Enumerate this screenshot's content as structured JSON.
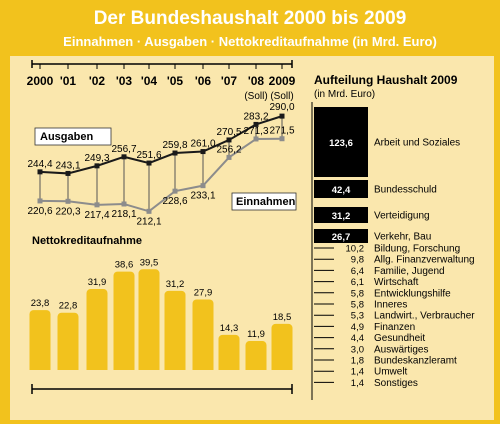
{
  "title": "Der Bundeshaushalt 2000 bis 2009",
  "subtitle": "Einnahmen · Ausgaben · Nettokreditaufnahme (in Mrd. Euro)",
  "chart_data": [
    {
      "type": "line",
      "x": [
        "2000",
        "'01",
        "'02",
        "'03",
        "'04",
        "'05",
        "'06",
        "'07",
        "'08",
        "2009"
      ],
      "x_sublabels": [
        "",
        "",
        "",
        "",
        "",
        "",
        "",
        "",
        "(Soll)",
        "(Soll)"
      ],
      "series": [
        {
          "name": "Ausgaben",
          "color": "#1a1a1a",
          "values": [
            244.4,
            243.1,
            249.3,
            256.7,
            251.6,
            259.8,
            261.0,
            270.5,
            283.2,
            290.0
          ]
        },
        {
          "name": "Einnahmen",
          "color": "#8c8c8c",
          "values": [
            220.6,
            220.3,
            217.4,
            218.1,
            212.1,
            228.6,
            233.1,
            256.2,
            271.3,
            271.5
          ]
        }
      ],
      "value_labels": {
        "Ausgaben": [
          "244,4",
          "243,1",
          "249,3",
          "256,7",
          "251,6",
          "259,8",
          "261,0",
          "270,5",
          "283,2",
          "290,0"
        ],
        "Einnahmen": [
          "220,6",
          "220,3",
          "217,4",
          "218,1",
          "212,1",
          "228,6",
          "233,1",
          "256,2",
          "271,3",
          "271,5"
        ]
      },
      "ylim": [
        205,
        295
      ]
    },
    {
      "type": "bar",
      "title": "Nettokreditaufnahme",
      "categories": [
        "2000",
        "'01",
        "'02",
        "'03",
        "'04",
        "'05",
        "'06",
        "'07",
        "'08",
        "2009"
      ],
      "values": [
        23.8,
        22.8,
        31.9,
        38.6,
        39.5,
        31.2,
        27.9,
        14.3,
        11.9,
        18.5
      ],
      "value_labels": [
        "23,8",
        "22,8",
        "31,9",
        "38,6",
        "39,5",
        "31,2",
        "27,9",
        "14,3",
        "11,9",
        "18,5"
      ],
      "bar_color": "#f2c21d",
      "ylim": [
        0,
        40
      ]
    },
    {
      "type": "bar",
      "orientation": "horizontal",
      "title": "Aufteilung Haushalt 2009",
      "subtitle": "(in Mrd. Euro)",
      "categories": [
        "Arbeit und Soziales",
        "Bundesschuld",
        "Verteidigung",
        "Verkehr, Bau",
        "Bildung, Forschung",
        "Allg. Finanzverwaltung",
        "Familie, Jugend",
        "Wirtschaft",
        "Entwicklungshilfe",
        "Inneres",
        "Landwirt., Verbraucher",
        "Finanzen",
        "Gesundheit",
        "Auswärtiges",
        "Bundeskanzleramt",
        "Umwelt",
        "Sonstiges"
      ],
      "values": [
        123.6,
        42.4,
        31.2,
        26.7,
        10.2,
        9.8,
        6.4,
        6.1,
        5.8,
        5.8,
        5.3,
        4.9,
        4.4,
        3.0,
        1.8,
        1.4,
        1.4
      ],
      "value_labels": [
        "123,6",
        "42,4",
        "31,2",
        "26,7",
        "10,2",
        "9,8",
        "6,4",
        "6,1",
        "5,8",
        "5,8",
        "5,3",
        "4,9",
        "4,4",
        "3,0",
        "1,8",
        "1,4",
        "1,4"
      ],
      "bar_color": "#000000"
    }
  ]
}
